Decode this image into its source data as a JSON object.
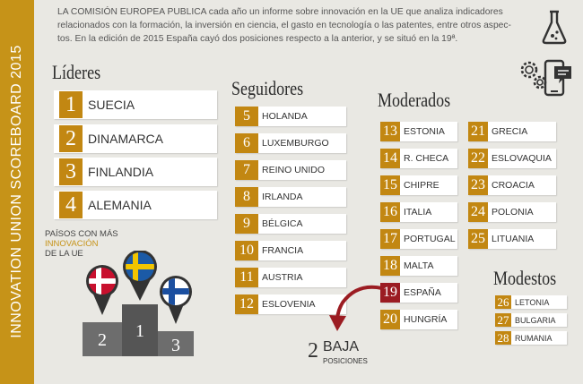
{
  "sidebar": {
    "title": "INNOVATION UNION SCOREBOARD 2015"
  },
  "intro": {
    "lines": [
      "LA COMISIÓN EUROPEA PUBLICA cada año un informe sobre innovación en la UE que analiza indicadores",
      "relacionados con la formación, la inversión en ciencia, el gasto en tecnología o las patentes, entre otros aspec-",
      "tos. En la edición de 2015 España cayó dos posiciones respecto a la anterior, y se situó en la 19ª."
    ]
  },
  "icons": [
    "flask-icon",
    "gears-icon",
    "mobile-chat-icon"
  ],
  "lideres": {
    "title": "Líderes",
    "items": [
      {
        "rank": "1",
        "country": "SUECIA"
      },
      {
        "rank": "2",
        "country": "DINAMARCA"
      },
      {
        "rank": "3",
        "country": "FINLANDIA"
      },
      {
        "rank": "4",
        "country": "ALEMANIA"
      }
    ]
  },
  "seguidores": {
    "title": "Seguidores",
    "items": [
      {
        "rank": "5",
        "country": "HOLANDA"
      },
      {
        "rank": "6",
        "country": "LUXEMBURGO"
      },
      {
        "rank": "7",
        "country": "REINO UNIDO"
      },
      {
        "rank": "8",
        "country": "IRLANDA"
      },
      {
        "rank": "9",
        "country": "BÉLGICA"
      },
      {
        "rank": "10",
        "country": "FRANCIA"
      },
      {
        "rank": "11",
        "country": "AUSTRIA"
      },
      {
        "rank": "12",
        "country": "ESLOVENIA"
      }
    ]
  },
  "moderados": {
    "title": "Moderados",
    "col1": [
      {
        "rank": "13",
        "country": "ESTONIA"
      },
      {
        "rank": "14",
        "country": "R. CHECA"
      },
      {
        "rank": "15",
        "country": "CHIPRE"
      },
      {
        "rank": "16",
        "country": "ITALIA"
      },
      {
        "rank": "17",
        "country": "PORTUGAL"
      },
      {
        "rank": "18",
        "country": "MALTA"
      },
      {
        "rank": "19",
        "country": "ESPAÑA"
      },
      {
        "rank": "20",
        "country": "HUNGRÍA"
      }
    ],
    "col2": [
      {
        "rank": "21",
        "country": "GRECIA"
      },
      {
        "rank": "22",
        "country": "ESLOVAQUIA"
      },
      {
        "rank": "23",
        "country": "CROACIA"
      },
      {
        "rank": "24",
        "country": "POLONIA"
      },
      {
        "rank": "25",
        "country": "LITUANIA"
      }
    ]
  },
  "modestos": {
    "title": "Modestos",
    "items": [
      {
        "rank": "26",
        "country": "LETONIA"
      },
      {
        "rank": "27",
        "country": "BULGARIA"
      },
      {
        "rank": "28",
        "country": "RUMANIA"
      }
    ]
  },
  "podium": {
    "caption_1": "PAÍSOS CON MÁS",
    "caption_2": "INNOVACIÓN",
    "caption_3": "DE LA UE",
    "places": [
      "1",
      "2",
      "3"
    ],
    "flags": [
      "sweden-flag",
      "denmark-flag",
      "finland-flag"
    ]
  },
  "baja": {
    "number": "2",
    "word": "BAJA",
    "sub": "POSICIONES"
  },
  "colors": {
    "gold": "#c28712",
    "highlight": "#9b1c22",
    "background": "#e9e8e3"
  }
}
